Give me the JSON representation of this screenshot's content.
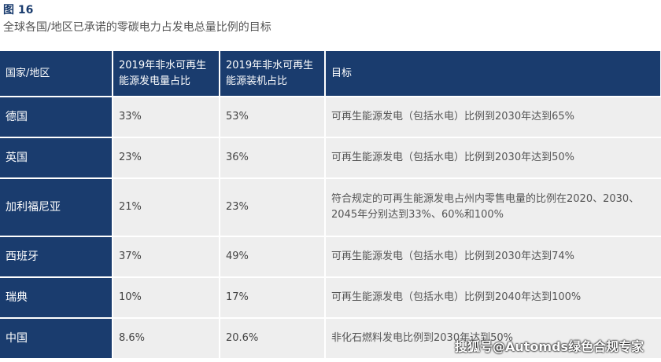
{
  "figure": {
    "label": "图 16",
    "title": "全球各国/地区已承诺的零碳电力占发电总量比例的目标"
  },
  "table": {
    "headers": [
      "国家/地区",
      "2019年非水可再生能源发电量占比",
      "2019年非水可再生能源装机占比",
      "目标"
    ],
    "rows": [
      {
        "region": "德国",
        "gen_share": "33%",
        "cap_share": "53%",
        "target": "可再生能源发电（包括水电）比例到2030年达到65%"
      },
      {
        "region": "英国",
        "gen_share": "23%",
        "cap_share": "36%",
        "target": "可再生能源发电（包括水电）比例到2030年达到50%"
      },
      {
        "region": "加利福尼亚",
        "gen_share": "21%",
        "cap_share": "23%",
        "target": "符合规定的可再生能源发电占州内零售电量的比例在2020、2030、2045年分别达到33%、60%和100%"
      },
      {
        "region": "西班牙",
        "gen_share": "37%",
        "cap_share": "49%",
        "target": "可再生能源发电（包括水电）比例到2030年达到74%"
      },
      {
        "region": "瑞典",
        "gen_share": "10%",
        "cap_share": "17%",
        "target": "可再生能源发电（包括水电）比例到2040年达到100%"
      },
      {
        "region": "中国",
        "gen_share": "8.6%",
        "cap_share": "20.6%",
        "target": "非化石燃料发电比例到2030年达到50%"
      }
    ]
  },
  "watermark": "搜狐号@Automds绿色合规专家"
}
